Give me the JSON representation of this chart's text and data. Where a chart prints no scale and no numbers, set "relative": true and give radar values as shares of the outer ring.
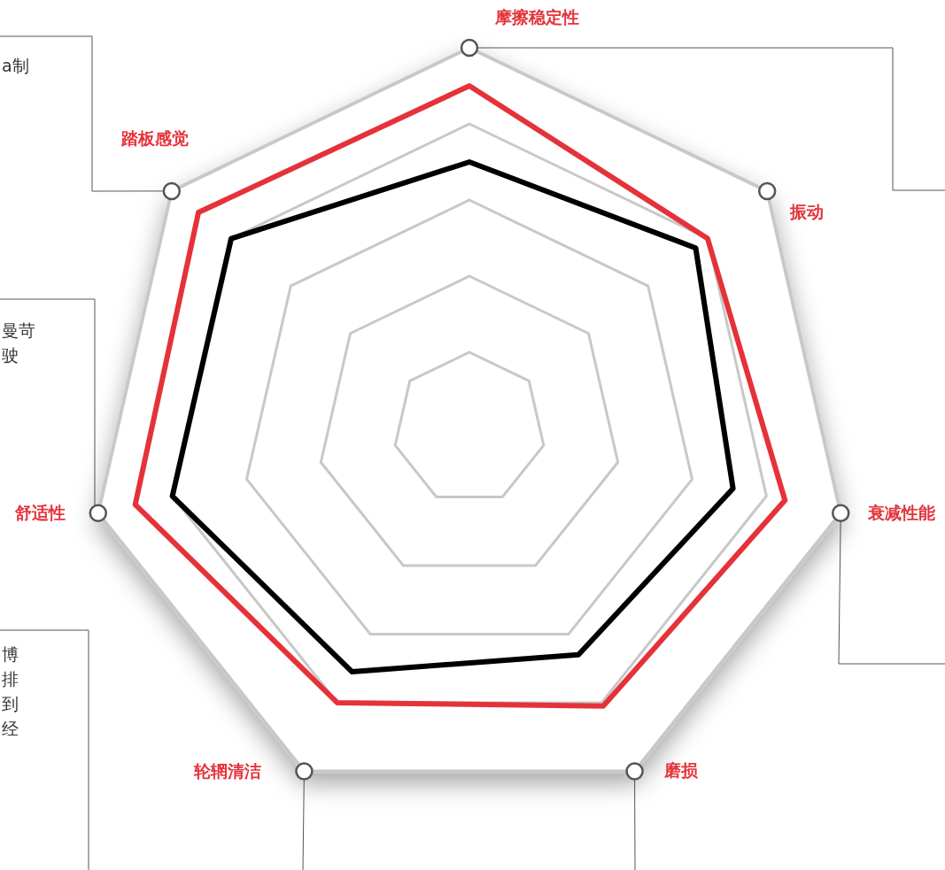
{
  "chart_data": {
    "type": "radar",
    "relative": true,
    "grid": true,
    "marker": "none",
    "categories": [
      "摩擦稳定性",
      "振动",
      "衰减性能",
      "磨损",
      "轮辋清洁",
      "舒适性",
      "踏板感觉"
    ],
    "series": [
      {
        "color": "#e5323a",
        "values": [
          0.9,
          0.8,
          0.85,
          0.81,
          0.8,
          0.9,
          0.91
        ]
      },
      {
        "color": "#000000",
        "values": [
          0.7,
          0.76,
          0.71,
          0.66,
          0.71,
          0.8,
          0.8
        ]
      }
    ],
    "annotations": [
      "a制",
      "曼苛",
      "驶",
      "博",
      "排",
      "到",
      "经"
    ]
  }
}
